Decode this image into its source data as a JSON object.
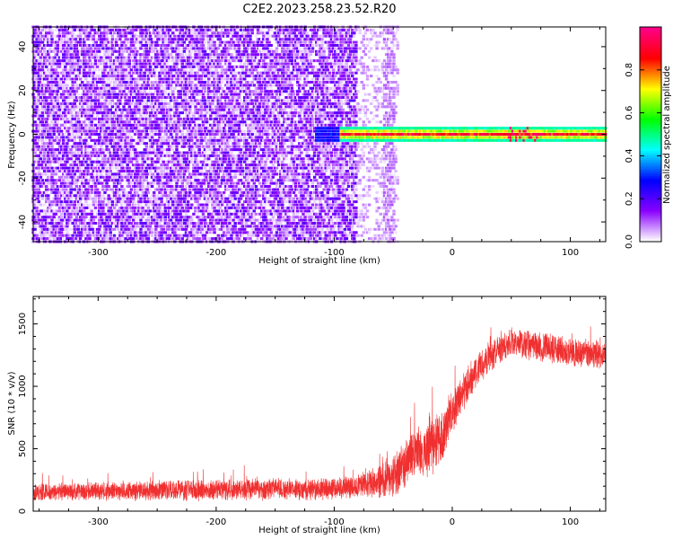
{
  "title": "C2E2.2023.258.23.52.R20",
  "chart_data": [
    {
      "type": "heatmap",
      "xlabel": "Height of straight line (km)",
      "ylabel": "Frequency (Hz)",
      "xlim": [
        -355,
        130
      ],
      "ylim": [
        -49,
        49
      ],
      "x_ticks": [
        -300,
        -200,
        -100,
        0,
        100
      ],
      "y_ticks": [
        -40,
        -20,
        0,
        20,
        40
      ],
      "colorbar": {
        "label": "Normalized spectral amplitude",
        "range": [
          0,
          1
        ],
        "ticks": [
          0.0,
          0.2,
          0.4,
          0.6,
          0.8
        ],
        "tick_labels": [
          "0.0",
          "0.2",
          "0.4",
          "0.6",
          "0.8"
        ],
        "colormap": [
          "#ffffff",
          "#8800ff",
          "#0000ff",
          "#00ffff",
          "#00ff00",
          "#ffff00",
          "#ff0000",
          "#ff0088"
        ]
      },
      "regions": [
        {
          "name": "noise",
          "x_range": [
            -355,
            -80
          ],
          "freq_range": [
            -49,
            49
          ],
          "amplitude": [
            0.0,
            0.2
          ]
        },
        {
          "name": "fade",
          "x_range": [
            -80,
            -45
          ],
          "freq_range": [
            -49,
            49
          ],
          "amplitude": [
            0.0,
            0.08
          ]
        },
        {
          "name": "signal",
          "x_range": [
            -115,
            130
          ],
          "freq_center": 0,
          "freq_halfwidth": 4,
          "amplitude": [
            0.3,
            1.0
          ]
        }
      ]
    },
    {
      "type": "line",
      "xlabel": "Height of straight line (km)",
      "ylabel": "SNR (10 * v/v)",
      "xlim": [
        -355,
        130
      ],
      "ylim": [
        0,
        1720
      ],
      "x_ticks": [
        -300,
        -200,
        -100,
        0,
        100
      ],
      "y_ticks": [
        0,
        500,
        1000,
        1500
      ],
      "color": "#f03030",
      "trend": {
        "x": [
          -355,
          -300,
          -200,
          -100,
          -80,
          -50,
          -40,
          -30,
          -20,
          -10,
          0,
          10,
          20,
          30,
          40,
          50,
          60,
          80,
          100,
          130
        ],
        "y": [
          150,
          160,
          170,
          180,
          200,
          260,
          380,
          480,
          520,
          550,
          820,
          950,
          1120,
          1230,
          1290,
          1350,
          1340,
          1310,
          1270,
          1250
        ]
      },
      "noise_amplitude": {
        "x": [
          -355,
          -80,
          -50,
          -20,
          0,
          30,
          130
        ],
        "y": [
          80,
          100,
          180,
          260,
          200,
          130,
          130
        ]
      }
    }
  ]
}
